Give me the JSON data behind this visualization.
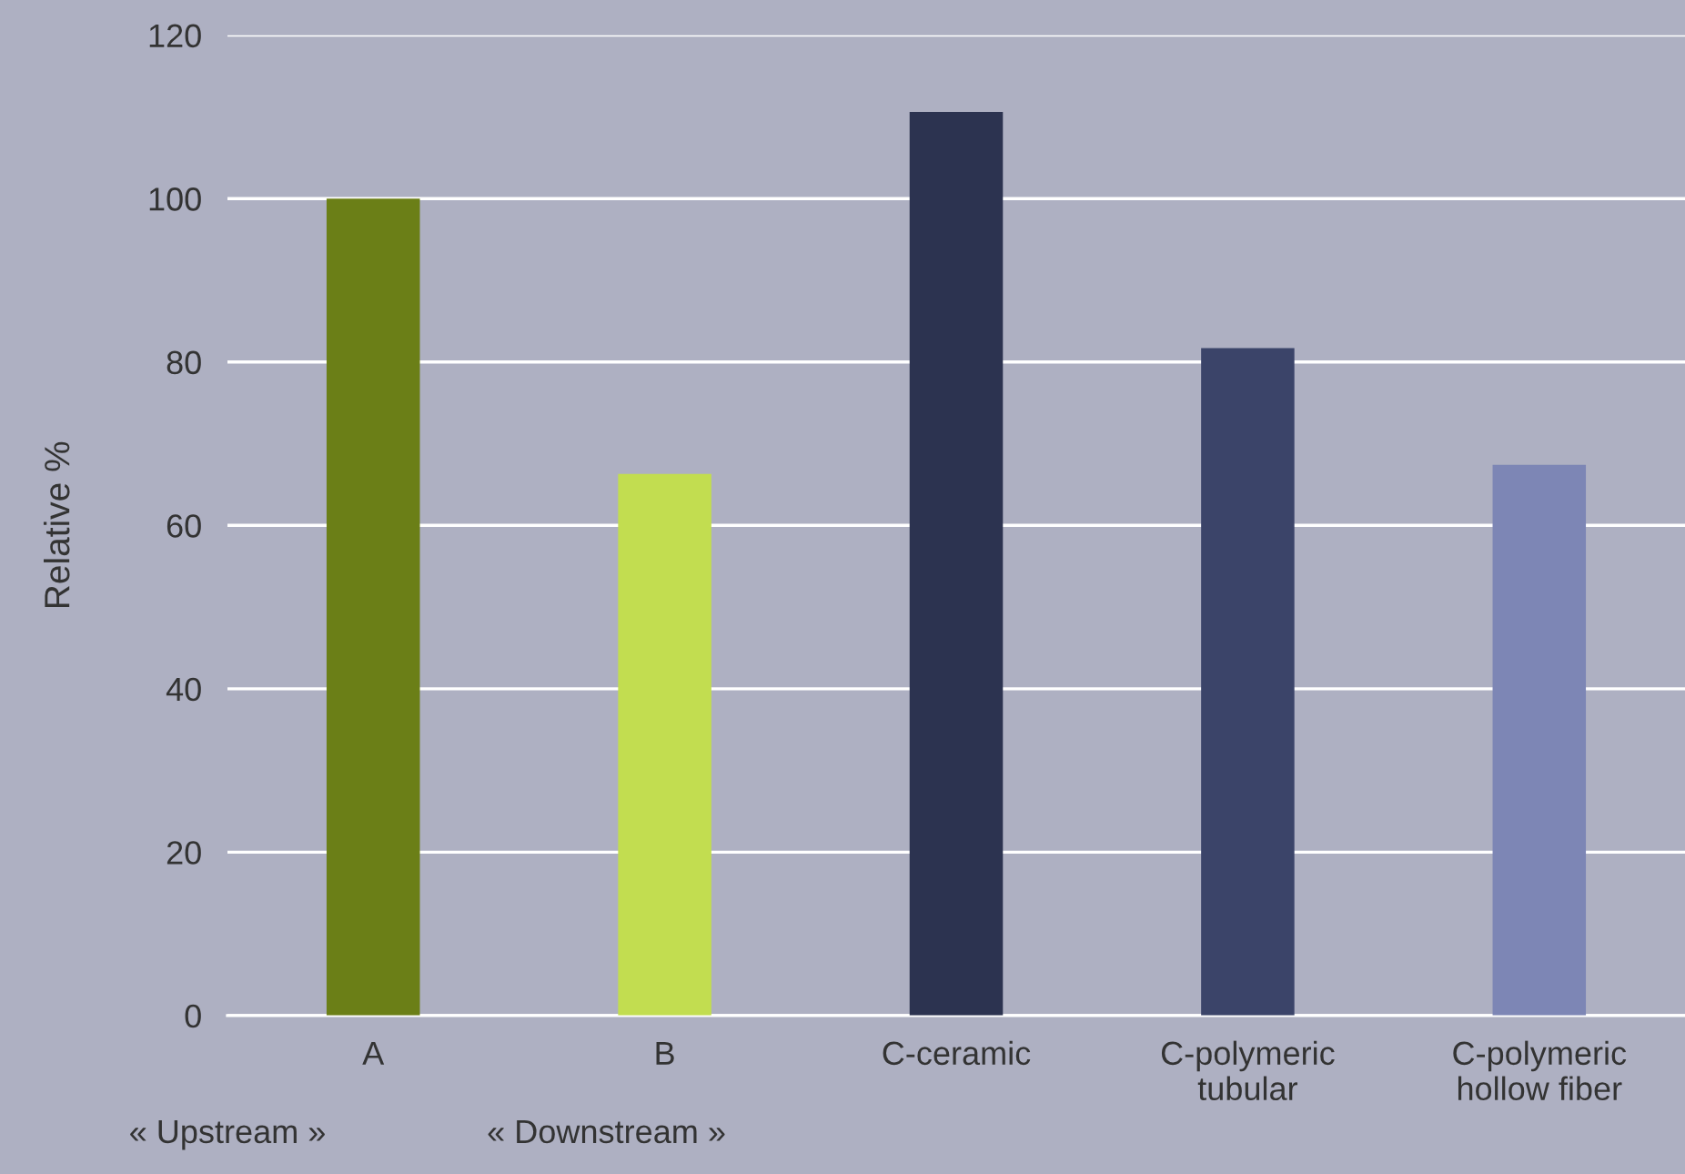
{
  "chart_data": {
    "type": "bar",
    "ylabel": "Relative %",
    "categories": [
      "A",
      "B",
      "C-ceramic",
      "C-polymeric\ntubular",
      "C-polymeric\nhollow fiber"
    ],
    "values": [
      100,
      66.3,
      110.6,
      81.7,
      67.4
    ],
    "colors": [
      "#6b7f17",
      "#c2dd50",
      "#2c3350",
      "#3b4469",
      "#7d86b5"
    ],
    "ylim": [
      0,
      120
    ],
    "yticks": [
      0,
      20,
      40,
      60,
      80,
      100,
      120
    ],
    "grid": "y",
    "annotations": [
      "« Upstream »",
      "« Downstream »"
    ]
  }
}
